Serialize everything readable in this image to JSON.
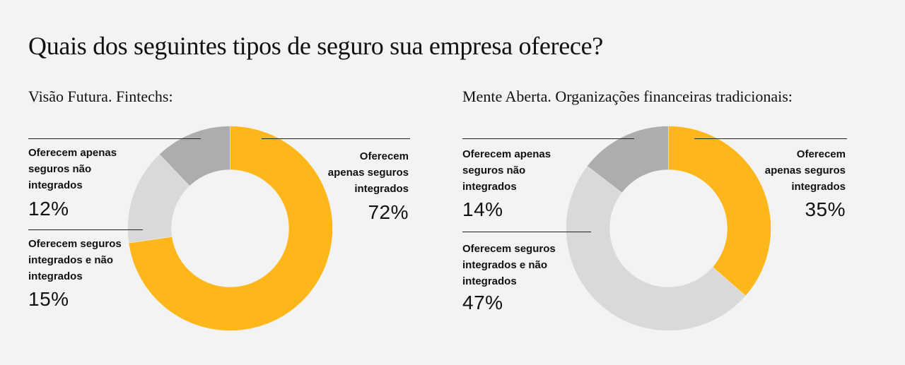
{
  "title": "Quais dos seguintes tipos de seguro sua empresa oferece?",
  "colors": {
    "integrated_only": "#fdb71a",
    "both": "#d9d9d9",
    "non_integrated_only": "#adadad"
  },
  "chart_data": [
    {
      "type": "pie",
      "variant": "donut",
      "title": "Visão Futura. Fintechs:",
      "slices": [
        {
          "label": "Oferecem apenas seguros integrados",
          "value": 72,
          "display": "72%",
          "color": "#fdb71a"
        },
        {
          "label": "Oferecem seguros integrados e não integrados",
          "value": 15,
          "display": "15%",
          "color": "#d9d9d9"
        },
        {
          "label": "Oferecem apenas seguros não integrados",
          "value": 12,
          "display": "12%",
          "color": "#adadad"
        }
      ]
    },
    {
      "type": "pie",
      "variant": "donut",
      "title": "Mente Aberta. Organizações financeiras tradicionais:",
      "slices": [
        {
          "label": "Oferecem apenas seguros integrados",
          "value": 35,
          "display": "35%",
          "color": "#fdb71a"
        },
        {
          "label": "Oferecem seguros integrados e não integrados",
          "value": 47,
          "display": "47%",
          "color": "#d9d9d9"
        },
        {
          "label": "Oferecem apenas seguros não integrados",
          "value": 14,
          "display": "14%",
          "color": "#adadad"
        }
      ]
    }
  ],
  "labels": {
    "c1": {
      "integrated": [
        "Oferecem",
        "apenas seguros",
        "integrados"
      ],
      "both": [
        "Oferecem seguros",
        "integrados e não",
        "integrados"
      ],
      "non": [
        "Oferecem apenas",
        "seguros não",
        "integrados"
      ]
    },
    "c2": {
      "integrated": [
        "Oferecem",
        "apenas seguros",
        "integrados"
      ],
      "both": [
        "Oferecem seguros",
        "integrados e não",
        "integrados"
      ],
      "non": [
        "Oferecem apenas",
        "seguros não",
        "integrados"
      ]
    }
  }
}
